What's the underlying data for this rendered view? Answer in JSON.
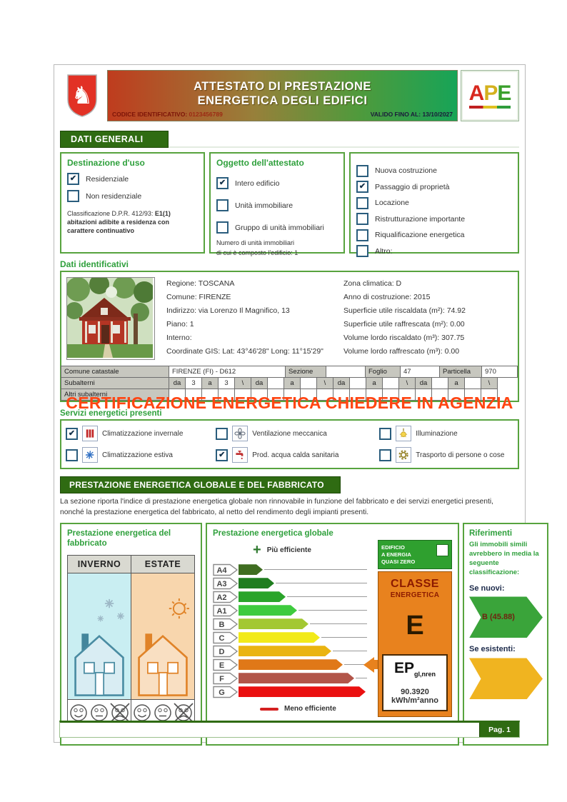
{
  "header": {
    "title_line1": "ATTESTATO DI PRESTAZIONE",
    "title_line2": "ENERGETICA DEGLI EDIFICI",
    "codice_label": "CODICE IDENTIFICATIVO:",
    "codice_value": "0123456789",
    "valido_label": "VALIDO FINO AL:",
    "valido_value": "13/10/2027",
    "logo_a": "A",
    "logo_p": "P",
    "logo_e": "E"
  },
  "sections": {
    "dati_generali": "DATI GENERALI",
    "prestazione": "PRESTAZIONE ENERGETICA GLOBALE E DEL FABBRICATO"
  },
  "destinazione": {
    "title": "Destinazione d'uso",
    "options": [
      {
        "label": "Residenziale",
        "checked": true
      },
      {
        "label": "Non residenziale",
        "checked": false
      }
    ],
    "class_label": "Classificazione D.P.R. 412/93: ",
    "class_code": "E1(1)",
    "class_desc": "abitazioni adibite a residenza con carattere continuativo"
  },
  "oggetto": {
    "title": "Oggetto dell'attestato",
    "options": [
      {
        "label": "Intero edificio",
        "checked": true
      },
      {
        "label": "Unità immobiliare",
        "checked": false
      },
      {
        "label": "Gruppo di unità immobiliari",
        "checked": false
      }
    ],
    "note_line1": "Numero di unità immobiliari",
    "note_line2": "di cui è composto l'edificio: 1"
  },
  "motivazione": {
    "options": [
      {
        "label": "Nuova costruzione",
        "checked": false
      },
      {
        "label": "Passaggio di proprietà",
        "checked": true
      },
      {
        "label": "Locazione",
        "checked": false
      },
      {
        "label": "Ristrutturazione importante",
        "checked": false
      },
      {
        "label": "Riqualificazione energetica",
        "checked": false
      },
      {
        "label": "Altro:",
        "checked": false
      }
    ]
  },
  "dati": {
    "title": "Dati identificativi",
    "left": [
      "Regione: TOSCANA",
      "Comune: FIRENZE",
      "Indirizzo: via Lorenzo Il Magnifico, 13",
      "Piano: 1",
      "Interno:",
      "Coordinate GIS:  Lat: 43°46'28\" Long: 11°15'29\""
    ],
    "right": [
      "Zona climatica: D",
      "Anno di costruzione: 2015",
      "Superficie utile riscaldata (m²): 74.92",
      "Superficie utile raffrescata (m²): 0.00",
      "Volume lordo riscaldato (m³): 307.75",
      "Volume lordo raffrescato (m³): 0.00"
    ]
  },
  "catasto": {
    "comune_label": "Comune catastale",
    "comune_value": "FIRENZE (FI) - D612",
    "sezione_label": "Sezione",
    "sezione_value": "",
    "foglio_label": "Foglio",
    "foglio_value": "47",
    "particella_label": "Particella",
    "particella_value": "970",
    "subalterni_label": "Subalterni",
    "da_label": "da",
    "a_label": "a",
    "slash": "\\",
    "groups": [
      {
        "da": "3",
        "a": "3"
      },
      {
        "da": "",
        "a": ""
      },
      {
        "da": "",
        "a": ""
      },
      {
        "da": "",
        "a": ""
      }
    ],
    "altri_label": "Altri subalterni"
  },
  "watermark": "CERTIFICAZIONE ENERGETICA CHIEDERE IN AGENZIA",
  "servizi": {
    "title": "Servizi energetici presenti",
    "items": [
      {
        "label": "Climatizzazione invernale",
        "checked": true,
        "icon": "radiator-icon"
      },
      {
        "label": "Climatizzazione estiva",
        "checked": false,
        "icon": "snowflake-icon"
      },
      {
        "label": "Ventilazione meccanica",
        "checked": false,
        "icon": "fan-icon"
      },
      {
        "label": "Prod. acqua calda sanitaria",
        "checked": true,
        "icon": "faucet-icon"
      },
      {
        "label": "Illuminazione",
        "checked": false,
        "icon": "bulb-icon"
      },
      {
        "label": "Trasporto di persone o cose",
        "checked": false,
        "icon": "gear-icon"
      }
    ]
  },
  "prestazione_desc": "La sezione riporta l'indice di prestazione energetica globale non rinnovabile in funzione del fabbricato e dei servizi energetici presenti, nonché la prestazione energetica del fabbricato, al netto del rendimento degli impianti presenti.",
  "fabbricato_panel": {
    "title_line1": "Prestazione energetica del",
    "title_line2": "fabbricato",
    "col_inverno": "INVERNO",
    "col_estate": "ESTATE"
  },
  "globale_panel": {
    "title": "Prestazione energetica globale",
    "nzeb_line1": "EDIFICIO",
    "nzeb_line2": "A ENERGIA",
    "nzeb_line3": "QUASI ZERO",
    "classe_label1": "CLASSE",
    "classe_label2": "ENERGETICA",
    "classe_value": "E",
    "ep_label": "EP",
    "ep_sub": "gl,nren",
    "ep_value": "90.3920",
    "ep_unit": "kWh/m²anno"
  },
  "chart_data": {
    "type": "bar",
    "title": "Prestazione energetica globale",
    "categories": [
      "A4",
      "A3",
      "A2",
      "A1",
      "B",
      "C",
      "D",
      "E",
      "F",
      "G"
    ],
    "colors": [
      "#3f6d21",
      "#1f7d1f",
      "#2aa42a",
      "#3ecb3e",
      "#a3c832",
      "#f2ea19",
      "#eab410",
      "#e07818",
      "#b25549",
      "#ea1010"
    ],
    "selected_class": "E",
    "ep_gl_nren": "90.3920",
    "unit": "kWh/m²anno",
    "more_label": "Più efficiente",
    "less_label": "Meno efficiente"
  },
  "riferimenti": {
    "title": "Riferimenti",
    "desc": "Gli immobili simili avrebbero in media la seguente classificazione:",
    "se_nuovi_label": "Se nuovi:",
    "se_nuovi_value": "B (45.88)",
    "se_esistenti_label": "Se esistenti:",
    "se_esistenti_value": ""
  },
  "footer": {
    "page": "Pag. 1"
  },
  "colors": {
    "section_green": "#2f6b12",
    "box_border_green": "#57a33e",
    "title_green": "#2fa03c",
    "classe_orange": "#e8821e",
    "nzeb_green": "#2fa02f",
    "watermark_red": "#ff4512"
  }
}
